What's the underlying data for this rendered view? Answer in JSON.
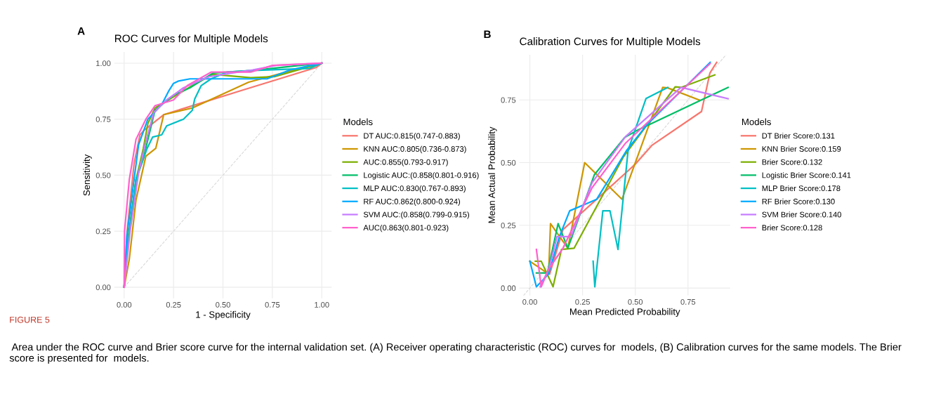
{
  "chart_data": [
    {
      "type": "line",
      "title": "ROC Curves for Multiple Models",
      "xlabel": "1 - Specificity",
      "ylabel": "Sensitivity",
      "legend_title": "Models",
      "legend": "right",
      "grid": true,
      "xlim": [
        -0.05,
        1.05
      ],
      "ylim": [
        -0.05,
        1.05
      ],
      "xticks": [
        {
          "value": 0,
          "label": "0.00"
        },
        {
          "value": 0.25,
          "label": "0.25"
        },
        {
          "value": 0.5,
          "label": "0.50"
        },
        {
          "value": 0.75,
          "label": "0.75"
        },
        {
          "value": 1,
          "label": "1.00"
        }
      ],
      "yticks": [
        {
          "value": 0,
          "label": "0.00"
        },
        {
          "value": 0.25,
          "label": "0.25"
        },
        {
          "value": 0.5,
          "label": "0.50"
        },
        {
          "value": 0.75,
          "label": "0.75"
        },
        {
          "value": 1,
          "label": "1.00"
        }
      ],
      "annotations": [
        "A",
        "FIGURE 5",
        " Area under the ROC curve and Brier score curve for the internal validation set. (A) Receiver operating characteristic (ROC) curves for  models, (B) Calibration curves for the same models. The Brier score is presented for  models."
      ],
      "series": [
        {
          "color": "#d9d9d9",
          "line_style": "dashed",
          "x": [
            0,
            1
          ],
          "values": [
            0,
            1
          ]
        },
        {
          "name": "DT AUC:0.815(0.747-0.883)",
          "color": "#F8766D",
          "x": [
            0,
            0.015,
            0.05,
            0.08,
            0.1,
            0.2,
            0.6,
            0.97,
            1
          ],
          "values": [
            0,
            0.25,
            0.55,
            0.68,
            0.7,
            0.77,
            0.88,
            0.98,
            1
          ]
        },
        {
          "name": "KNN AUC:0.805(0.736-0.873)",
          "color": "#CD9600",
          "x": [
            0,
            0.026,
            0.06,
            0.11,
            0.16,
            0.2,
            0.345,
            0.63,
            0.84,
            1
          ],
          "values": [
            0,
            0.125,
            0.39,
            0.585,
            0.62,
            0.77,
            0.8,
            0.915,
            0.965,
            1
          ]
        },
        {
          "name": "AUC:0.855(0.793-0.917)",
          "color": "#7CAE00",
          "x": [
            0,
            0.014,
            0.06,
            0.097,
            0.12,
            0.156,
            0.25,
            0.345,
            0.45,
            0.64,
            0.76,
            0.96,
            1
          ],
          "values": [
            0,
            0.18,
            0.48,
            0.62,
            0.73,
            0.8,
            0.85,
            0.9,
            0.95,
            0.935,
            0.94,
            0.99,
            1
          ]
        },
        {
          "name": "Logistic AUC:(0.858(0.801-0.916)",
          "color": "#00BE67",
          "x": [
            0,
            0.014,
            0.06,
            0.097,
            0.156,
            0.25,
            0.333,
            0.45,
            0.65,
            0.89,
            1
          ],
          "values": [
            0,
            0.16,
            0.48,
            0.575,
            0.79,
            0.857,
            0.89,
            0.956,
            0.967,
            0.99,
            1
          ]
        },
        {
          "name": "MLP AUC:0.830(0.767-0.893)",
          "color": "#00BFC4",
          "x": [
            0,
            0.02,
            0.06,
            0.115,
            0.144,
            0.19,
            0.215,
            0.3,
            0.345,
            0.357,
            0.39,
            0.44,
            0.52,
            0.65,
            0.94,
            1
          ],
          "values": [
            0,
            0.2,
            0.48,
            0.617,
            0.67,
            0.68,
            0.72,
            0.75,
            0.79,
            0.84,
            0.9,
            0.93,
            0.96,
            0.967,
            0.977,
            1
          ]
        },
        {
          "name": "RF AUC:0.862(0.800-0.924)",
          "color": "#00A9FF",
          "x": [
            0,
            0.014,
            0.05,
            0.073,
            0.12,
            0.19,
            0.227,
            0.25,
            0.274,
            0.333,
            0.723,
            0.84,
            1
          ],
          "values": [
            0,
            0.23,
            0.48,
            0.636,
            0.75,
            0.815,
            0.878,
            0.91,
            0.92,
            0.93,
            0.93,
            0.97,
            1
          ]
        },
        {
          "name": "SVM AUC:(0.858(0.799-0.915)",
          "color": "#C77CFF",
          "x": [
            0,
            0.03,
            0.073,
            0.11,
            0.15,
            0.215,
            0.3,
            0.43,
            0.65,
            0.77,
            1
          ],
          "values": [
            0,
            0.25,
            0.51,
            0.65,
            0.78,
            0.836,
            0.89,
            0.94,
            0.97,
            0.99,
            1
          ]
        },
        {
          "name": "AUC(0.863(0.801-0.923)",
          "color": "#FF61CC",
          "x": [
            0,
            0.002,
            0.026,
            0.06,
            0.11,
            0.156,
            0.25,
            0.32,
            0.44,
            0.64,
            0.75,
            1
          ],
          "values": [
            0,
            0.25,
            0.48,
            0.66,
            0.75,
            0.81,
            0.836,
            0.9,
            0.96,
            0.96,
            0.99,
            1
          ]
        }
      ]
    },
    {
      "type": "line",
      "title": "Calibration Curves for Multiple Models",
      "xlabel": "Mean Predicted Probability",
      "ylabel": "Mean Actual Probability",
      "legend_title": "Models",
      "legend": "right",
      "grid": true,
      "xlim": [
        -0.05,
        0.95
      ],
      "ylim": [
        -0.03,
        0.93
      ],
      "xticks": [
        {
          "value": 0,
          "label": "0.00"
        },
        {
          "value": 0.25,
          "label": "0.25"
        },
        {
          "value": 0.5,
          "label": "0.50"
        },
        {
          "value": 0.75,
          "label": "0.75"
        }
      ],
      "yticks": [
        {
          "value": 0,
          "label": "0.00"
        },
        {
          "value": 0.25,
          "label": "0.25"
        },
        {
          "value": 0.5,
          "label": "0.50"
        },
        {
          "value": 0.75,
          "label": "0.75"
        }
      ],
      "annotations": [
        "B"
      ],
      "series": [
        {
          "color": "#d9d9d9",
          "line_style": "dashed",
          "x": [
            -0.03,
            0.93
          ],
          "values": [
            -0.03,
            0.93
          ]
        },
        {
          "name": "DT Brier Score:0.131",
          "color": "#F8766D",
          "x": [
            0.094,
            0.157,
            0.317,
            0.5,
            0.58,
            0.814,
            0.854,
            0.886
          ],
          "values": [
            0.056,
            0.233,
            0.354,
            0.494,
            0.57,
            0.704,
            0.858,
            0.9
          ]
        },
        {
          "name": "KNN Brier Score:0.159",
          "color": "#CD9600",
          "x": [
            0,
            0.089,
            0.098,
            0.18,
            0.26,
            0.437,
            0.63,
            0.654,
            0.803
          ],
          "values": [
            0.107,
            0.056,
            0.257,
            0.159,
            0.5,
            0.354,
            0.8,
            0.798,
            0.75
          ]
        },
        {
          "name": "Brier Score:0.132",
          "color": "#7CAE00",
          "x": [
            0.026,
            0.054,
            0.11,
            0.15,
            0.21,
            0.443,
            0.689,
            0.717,
            0.877
          ],
          "values": [
            0.107,
            0.107,
            0.005,
            0.154,
            0.159,
            0.522,
            0.802,
            0.8,
            0.85
          ]
        },
        {
          "name": "Logistic Brier Score:0.141",
          "color": "#00BE67",
          "x": [
            0.031,
            0.083,
            0.134,
            0.18,
            0.306,
            0.449,
            0.511,
            0.94
          ],
          "values": [
            0.06,
            0.06,
            0.257,
            0.159,
            0.452,
            0.6,
            0.63,
            0.8
          ]
        },
        {
          "name": "MLP Brier Score:0.178",
          "color": "#00BFC4",
          "x": [
            0.3,
            0.308,
            0.346,
            0.38,
            0.418,
            0.466,
            0.551,
            0.654
          ],
          "values": [
            0.107,
            0.005,
            0.308,
            0.308,
            0.154,
            0.55,
            0.756,
            0.8
          ]
        },
        {
          "name": "RF Brier Score:0.130",
          "color": "#00A9FF",
          "x": [
            0,
            0.031,
            0.089,
            0.14,
            0.189,
            0.317,
            0.46,
            0.557,
            0.855
          ],
          "values": [
            0.107,
            0.005,
            0.056,
            0.205,
            0.308,
            0.354,
            0.55,
            0.653,
            0.9
          ]
        },
        {
          "name": "SVM Brier Score:0.140",
          "color": "#C77CFF",
          "x": [
            0.049,
            0.089,
            0.129,
            0.195,
            0.295,
            0.454,
            0.717,
            0.94
          ],
          "values": [
            0.005,
            0.075,
            0.205,
            0.205,
            0.42,
            0.604,
            0.8,
            0.755
          ]
        },
        {
          "name": "Brier Score:0.128",
          "color": "#FF61CC",
          "x": [
            0.031,
            0.054,
            0.089,
            0.157,
            0.295,
            0.454,
            0.855
          ],
          "values": [
            0.154,
            0.005,
            0.075,
            0.159,
            0.4,
            0.578,
            0.895
          ]
        }
      ]
    }
  ]
}
